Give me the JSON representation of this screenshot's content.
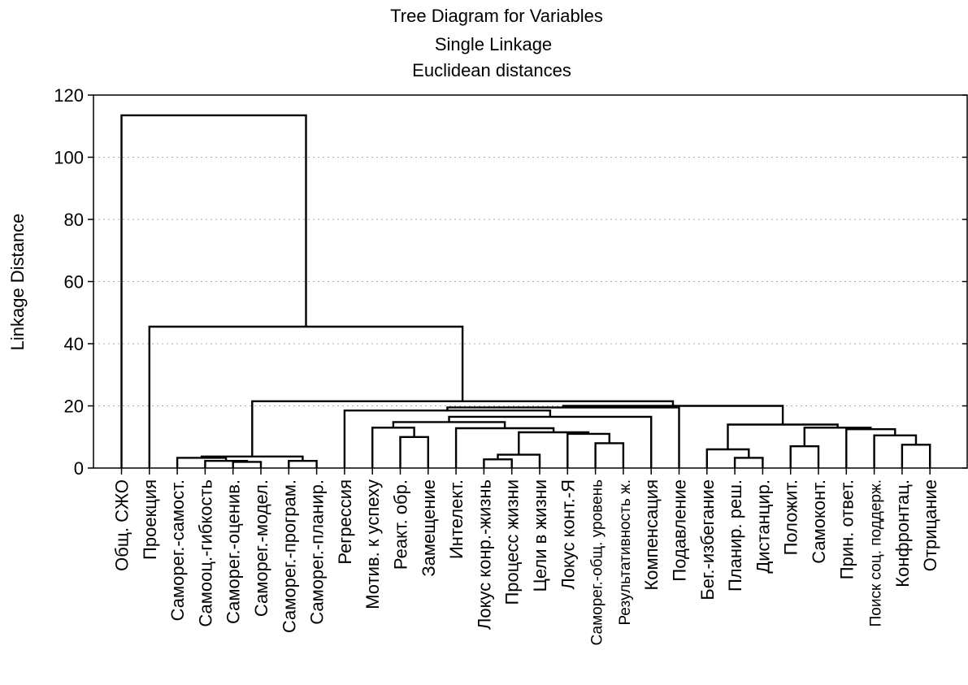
{
  "chart_data": {
    "type": "dendrogram",
    "title": "Tree Diagram for  Variables",
    "subtitle_1": "Single Linkage",
    "subtitle_2": "Euclidean distances",
    "ylabel": "Linkage Distance",
    "ylim": [
      0,
      120
    ],
    "yticks": [
      "0",
      "20",
      "40",
      "60",
      "80",
      "100",
      "120"
    ],
    "grid": true,
    "leaves": [
      "Общ. СЖО",
      "Проекция",
      "Саморег.-самост.",
      "Самооц.-гибкость",
      "Саморег.-оценив.",
      "Саморег.-модел.",
      "Саморег.-програм.",
      "Саморег.-планир.",
      "Регрессия",
      "Мотив. к успеху",
      "Реакт. обр.",
      "Замещение",
      "Интелект.",
      "Локус конр.-жизнь",
      "Процесс жизни",
      "Цели в жизни",
      "Локус конт.-Я",
      "Саморег.-общ. уровень",
      "Результативность ж.",
      "Компенсация",
      "Подавление",
      "Бег.-избегание",
      "Планир. реш.",
      "Дистанцир.",
      "Положит.",
      "Самоконт.",
      "Прин. ответ.",
      "Поиск соц. поддерж.",
      "Конфронтац.",
      "Отрицание"
    ],
    "merges": [
      {
        "a": 4,
        "b": 5,
        "height": 2.0
      },
      {
        "a": 6,
        "b": 7,
        "height": 2.3
      },
      {
        "a": 3,
        "b": "m0",
        "height": 2.3
      },
      {
        "a": 2,
        "b": "m2",
        "height": 3.3
      },
      {
        "a": "m3",
        "b": "m1",
        "height": 3.7
      },
      {
        "a": 10,
        "b": 11,
        "height": 10.0
      },
      {
        "a": 9,
        "b": "m5",
        "height": 13.0
      },
      {
        "a": 13,
        "b": 14,
        "height": 2.8
      },
      {
        "a": "m7",
        "b": 15,
        "height": 4.3
      },
      {
        "a": 17,
        "b": 18,
        "height": 8.0
      },
      {
        "a": 16,
        "b": "m9",
        "height": 11.0
      },
      {
        "a": "m8",
        "b": "m10",
        "height": 11.5
      },
      {
        "a": 12,
        "b": "m11",
        "height": 12.8
      },
      {
        "a": "m6",
        "b": "m12",
        "height": 14.8
      },
      {
        "a": "m13",
        "b": 19,
        "height": 16.5
      },
      {
        "a": 22,
        "b": 23,
        "height": 3.3
      },
      {
        "a": 21,
        "b": "m15",
        "height": 6.0
      },
      {
        "a": 28,
        "b": 29,
        "height": 7.5
      },
      {
        "a": 27,
        "b": "m17",
        "height": 10.5
      },
      {
        "a": 26,
        "b": "m18",
        "height": 12.5
      },
      {
        "a": 24,
        "b": 25,
        "height": 7.0
      },
      {
        "a": "m20",
        "b": "m19",
        "height": 13.0
      },
      {
        "a": "m16",
        "b": "m21",
        "height": 14.0
      },
      {
        "a": 8,
        "b": "m14",
        "height": 18.5
      },
      {
        "a": "m23",
        "b": 20,
        "height": 19.5
      },
      {
        "a": "m24",
        "b": "m22",
        "height": 20.0
      },
      {
        "a": "m4",
        "b": "m25",
        "height": 21.5
      },
      {
        "a": 1,
        "b": "m26",
        "height": 45.5
      },
      {
        "a": 0,
        "b": "m27",
        "height": 113.5
      }
    ]
  }
}
